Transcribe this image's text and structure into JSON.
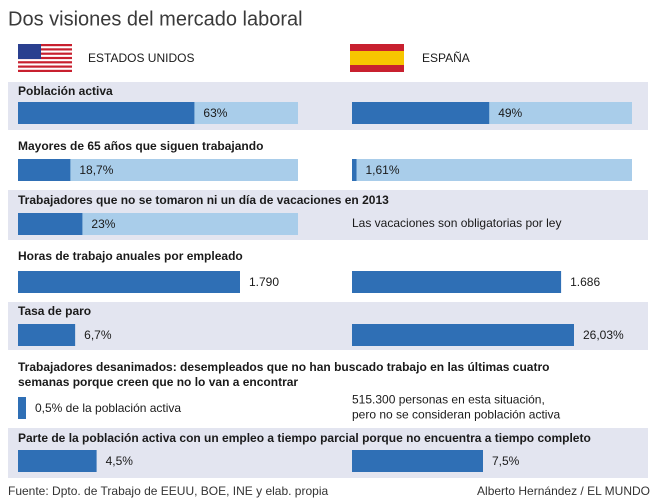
{
  "title": "Dos visiones del mercado laboral",
  "countries": [
    "ESTADOS UNIDOS",
    "ESPAÑA"
  ],
  "colors": {
    "bar": "#2f6fb5",
    "track": "#a9cdea",
    "panel": "#e3e5f0"
  },
  "rows": [
    {
      "label": [
        "Población activa"
      ],
      "track": true,
      "panel": true,
      "cells": [
        {
          "value": 63,
          "label": "63%"
        },
        {
          "value": 49,
          "label": "49%"
        }
      ]
    },
    {
      "label": [
        "Mayores de 65 años que siguen trabajando"
      ],
      "track": true,
      "panel": false,
      "cells": [
        {
          "value": 18.7,
          "label": "18,7%"
        },
        {
          "value": 1.61,
          "label": "1,61%"
        }
      ]
    },
    {
      "label": [
        "Trabajadores que no se tomaron ni un día de vacaciones en 2013"
      ],
      "track": true,
      "panel": true,
      "cells": [
        {
          "value": 23,
          "label": "23%"
        },
        {
          "text": [
            "Las vacaciones son obligatorias por ley"
          ]
        }
      ]
    },
    {
      "label": [
        "Horas de trabajo anuales por empleado"
      ],
      "track": false,
      "panel": false,
      "cells": [
        {
          "value": 1790,
          "label": "1.790"
        },
        {
          "value": 1686,
          "label": "1.686"
        }
      ]
    },
    {
      "label": [
        "Tasa de paro"
      ],
      "track": false,
      "panel": true,
      "cells": [
        {
          "value": 6.7,
          "label": "6,7%"
        },
        {
          "value": 26.03,
          "label": "26,03%"
        }
      ]
    },
    {
      "label": [
        "Trabajadores desanimados: desempleados que no han buscado trabajo en las últimas cuatro",
        "semanas porque creen que no lo van a encontrar"
      ],
      "track": false,
      "panel": false,
      "cells": [
        {
          "value": 0.5,
          "label": "0,5% de la población activa"
        },
        {
          "text": [
            "515.300 personas en esta situación,",
            "pero no se consideran población activa"
          ]
        }
      ]
    },
    {
      "label": [
        "Parte de la población activa con un empleo a tiempo parcial porque no encuentra a tiempo completo"
      ],
      "track": false,
      "panel": true,
      "cells": [
        {
          "value": 4.5,
          "label": "4,5%"
        },
        {
          "value": 7.5,
          "label": "7,5%"
        }
      ]
    }
  ],
  "source": "Fuente: Dpto. de Trabajo de EEUU, BOE, INE y elab. propia",
  "author": "Alberto Hernández / EL MUNDO"
}
